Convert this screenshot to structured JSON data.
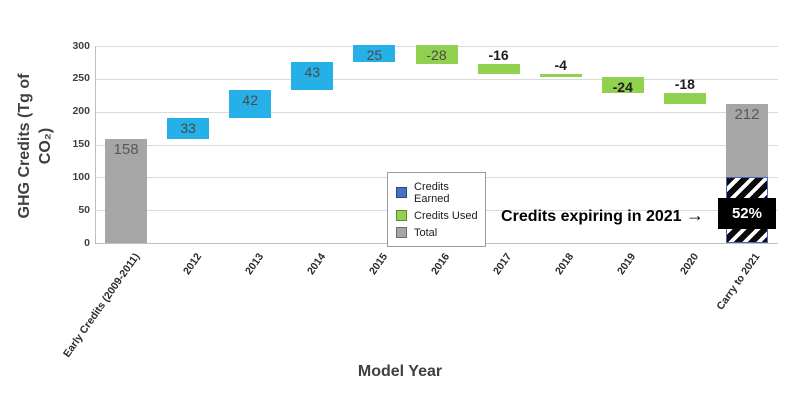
{
  "chart_data": {
    "type": "bar",
    "subtype": "waterfall",
    "title": "",
    "xlabel": "Model Year",
    "ylabel": "GHG Credits (Tg of CO₂)",
    "ylabel_lines": [
      "GHG Credits (Tg of",
      "CO₂)"
    ],
    "ylim": [
      0,
      300
    ],
    "yticks": [
      0,
      50,
      100,
      150,
      200,
      250,
      300
    ],
    "grid": "horizontal",
    "legend_position": "inside-lower-middle",
    "colors": {
      "earned_bar": "#25b1e7",
      "used_bar": "#92d050",
      "total_bar": "#a6a6a6",
      "legend_earned": "#4472c4",
      "hatch_border": "#4a63bc",
      "gridline": "#dadada",
      "axis": "#bfbfbf"
    },
    "bars": [
      {
        "category": "Early Credits (2009-2011)",
        "series": "total",
        "value": 158,
        "start": 0,
        "end": 158,
        "label": "158",
        "label_placement": "inside",
        "emphasis": false
      },
      {
        "category": "2012",
        "series": "earned",
        "value": 33,
        "start": 158,
        "end": 191,
        "label": "33",
        "label_placement": "inside",
        "emphasis": false
      },
      {
        "category": "2013",
        "series": "earned",
        "value": 42,
        "start": 191,
        "end": 233,
        "label": "42",
        "label_placement": "inside",
        "emphasis": false
      },
      {
        "category": "2014",
        "series": "earned",
        "value": 43,
        "start": 233,
        "end": 276,
        "label": "43",
        "label_placement": "inside",
        "emphasis": false
      },
      {
        "category": "2015",
        "series": "earned",
        "value": 25,
        "start": 276,
        "end": 301,
        "label": "25",
        "label_placement": "inside",
        "emphasis": false
      },
      {
        "category": "2016",
        "series": "used",
        "value": -28,
        "start": 301,
        "end": 273,
        "label": "-28",
        "label_placement": "inside",
        "emphasis": false
      },
      {
        "category": "2017",
        "series": "used",
        "value": -16,
        "start": 273,
        "end": 257,
        "label": "-16",
        "label_placement": "above",
        "emphasis": true
      },
      {
        "category": "2018",
        "series": "used",
        "value": -4,
        "start": 257,
        "end": 253,
        "label": "-4",
        "label_placement": "above",
        "emphasis": true
      },
      {
        "category": "2019",
        "series": "used",
        "value": -24,
        "start": 253,
        "end": 229,
        "label": "-24",
        "label_placement": "inside",
        "emphasis": true
      },
      {
        "category": "2020",
        "series": "used",
        "value": -18,
        "start": 229,
        "end": 211,
        "label": "-18",
        "label_placement": "above",
        "emphasis": true
      },
      {
        "category": "Carry to 2021",
        "series": "total",
        "value": 212,
        "start": 0,
        "end": 212,
        "label": "212",
        "label_placement": "inside",
        "emphasis": false,
        "segments": [
          {
            "kind": "hatched",
            "from": 0,
            "to": 100
          },
          {
            "kind": "solid",
            "from": 100,
            "to": 212
          }
        ],
        "callout": {
          "text": "52%",
          "from": 22,
          "to": 69
        }
      }
    ],
    "legend": {
      "entries": [
        {
          "label": "Credits Earned",
          "swatch": "#4472c4"
        },
        {
          "label": "Credits Used",
          "swatch": "#92d050"
        },
        {
          "label": "Total",
          "swatch": "#a6a6a6"
        }
      ]
    },
    "annotation": {
      "text": "Credits expiring in 2021",
      "arrow": "→"
    }
  }
}
